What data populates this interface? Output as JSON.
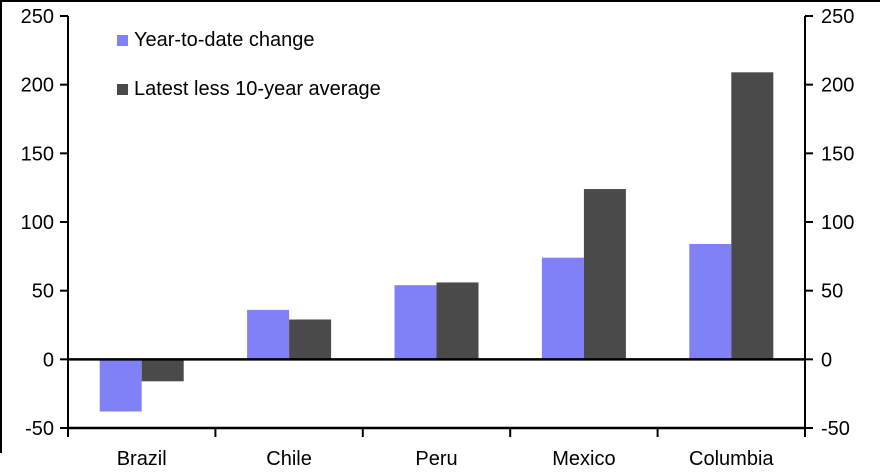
{
  "chart_data": {
    "type": "bar",
    "title": "",
    "categories": [
      "Brazil",
      "Chile",
      "Peru",
      "Mexico",
      "Columbia"
    ],
    "series": [
      {
        "name": "Year-to-date change",
        "color": "#8181F7",
        "values": [
          -38,
          36,
          54,
          74,
          84
        ]
      },
      {
        "name": "Latest less 10-year average",
        "color": "#4A4A4A",
        "values": [
          -16,
          29,
          56,
          124,
          209
        ]
      }
    ],
    "xlabel": "",
    "ylabel": "",
    "ylim": [
      -50,
      250
    ],
    "yticks": [
      250,
      200,
      150,
      100,
      50,
      0,
      -50
    ],
    "grid": false,
    "legend_position": "top-left",
    "axes": {
      "left_labels": true,
      "right_labels": true,
      "same_scale_both_sides": true
    },
    "zero_baseline_shown": true
  },
  "colors": {
    "background": "#FFFFFF",
    "axis": "#000000",
    "text": "#000000",
    "series1": "#8181F7",
    "series2": "#4A4A4A"
  }
}
